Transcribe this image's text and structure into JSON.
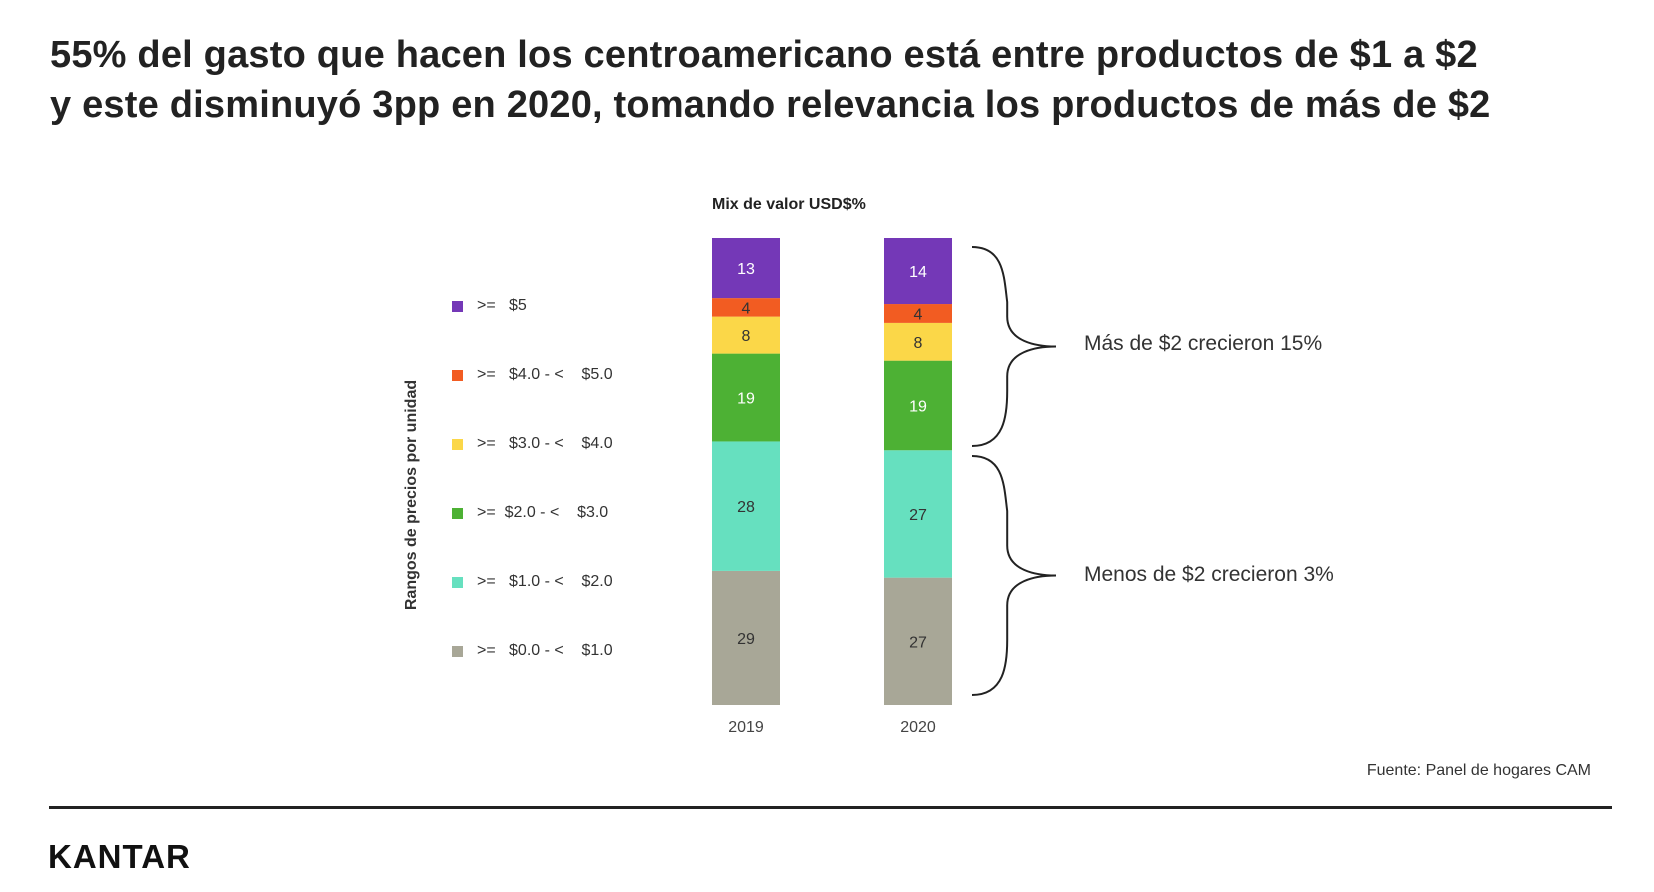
{
  "title": {
    "line1": "55% del gasto que hacen los centroamericano está entre productos de $1 a $2",
    "line2": "y este disminuyó 3pp en 2020, tomando relevancia los productos de más de $2"
  },
  "footer": {
    "source": "Fuente: Panel de hogares CAM",
    "logo": "KANTAR"
  },
  "annotations": {
    "upper": "Más de $2 crecieron 15%",
    "lower": "Menos de $2 crecieron 3%"
  },
  "chart_data": {
    "type": "bar",
    "stacked": true,
    "title": "Mix de valor USD$%",
    "ylabel": "Rangos de precios por unidad",
    "categories": [
      "2019",
      "2020"
    ],
    "series": [
      {
        "name": ">=   $0.0 - <    $1.0",
        "color": "#a8a797",
        "values": [
          29,
          27
        ]
      },
      {
        "name": ">=   $1.0 - <    $2.0",
        "color": "#66e0bf",
        "values": [
          28,
          27
        ]
      },
      {
        "name": ">=  $2.0 - <    $3.0",
        "color": "#4db134",
        "values": [
          19,
          19
        ]
      },
      {
        "name": ">=   $3.0 - <    $4.0",
        "color": "#fbd748",
        "values": [
          8,
          8
        ]
      },
      {
        "name": ">=   $4.0 - <    $5.0",
        "color": "#f25c22",
        "values": [
          4,
          4
        ]
      },
      {
        "name": ">=   $5",
        "color": "#7438b7",
        "values": [
          13,
          14
        ]
      }
    ],
    "legend_position": "left"
  }
}
